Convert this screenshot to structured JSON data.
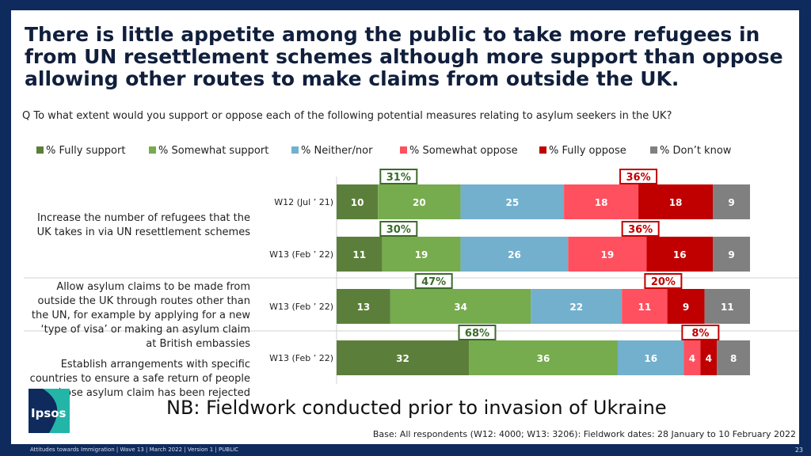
{
  "title": "There is little appetite among the public to take more refugees in from UN resettlement schemes although more support than oppose allowing other routes to make claims from outside the UK.",
  "question": "Q To what extent would you support or oppose each of the following potential measures relating to asylum seekers in the UK?",
  "nb_note": "NB: Fieldwork conducted prior to invasion of Ukraine",
  "base_note": "Base: All respondents (W12: 4000; W13: 3206): Fieldwork dates: 28 January to 10 February 2022",
  "footer": "Attitudes towards Immigration | Wave 13 | March 2022 | Version 1 | PUBLIC",
  "page_number": "23",
  "logo_text": "Ipsos",
  "colors": {
    "background": "#0f2a5c",
    "support_box": "#3a6b2a",
    "oppose_box": "#c00000"
  },
  "row_labels": [
    "Increase the number of refugees that the UK takes in via UN resettlement schemes",
    "Allow asylum claims to be made from outside the UK through routes other than the UN, for example by applying for a new ‘type of visa’ or making an asylum claim at British embassies",
    "Establish arrangements with specific countries to ensure a safe return of people whose asylum claim has been rejected"
  ],
  "chart_data": {
    "type": "bar",
    "orientation": "horizontal",
    "stacked": true,
    "categories": [
      "W12 (Jul ’ 21)",
      "W13 (Feb ’ 22)",
      "W13 (Feb ’ 22)",
      "W13 (Feb ’ 22)"
    ],
    "series": [
      {
        "name": "% Fully support",
        "color": "#5b7f3a",
        "values": [
          10,
          11,
          13,
          32
        ]
      },
      {
        "name": "% Somewhat support",
        "color": "#76ab4e",
        "values": [
          20,
          19,
          34,
          36
        ]
      },
      {
        "name": "% Neither/nor",
        "color": "#72b0ce",
        "values": [
          25,
          26,
          22,
          16
        ]
      },
      {
        "name": "% Somewhat oppose",
        "color": "#ff505f",
        "values": [
          18,
          19,
          11,
          4
        ]
      },
      {
        "name": "% Fully oppose",
        "color": "#c00000",
        "values": [
          18,
          16,
          9,
          4
        ]
      },
      {
        "name": "% Don’t know",
        "color": "#808080",
        "values": [
          9,
          9,
          11,
          8
        ]
      }
    ],
    "net_support": [
      "31%",
      "30%",
      "47%",
      "68%"
    ],
    "net_oppose": [
      "36%",
      "36%",
      "20%",
      "8%"
    ],
    "legend_position": "top",
    "xlim": [
      0,
      100
    ]
  }
}
